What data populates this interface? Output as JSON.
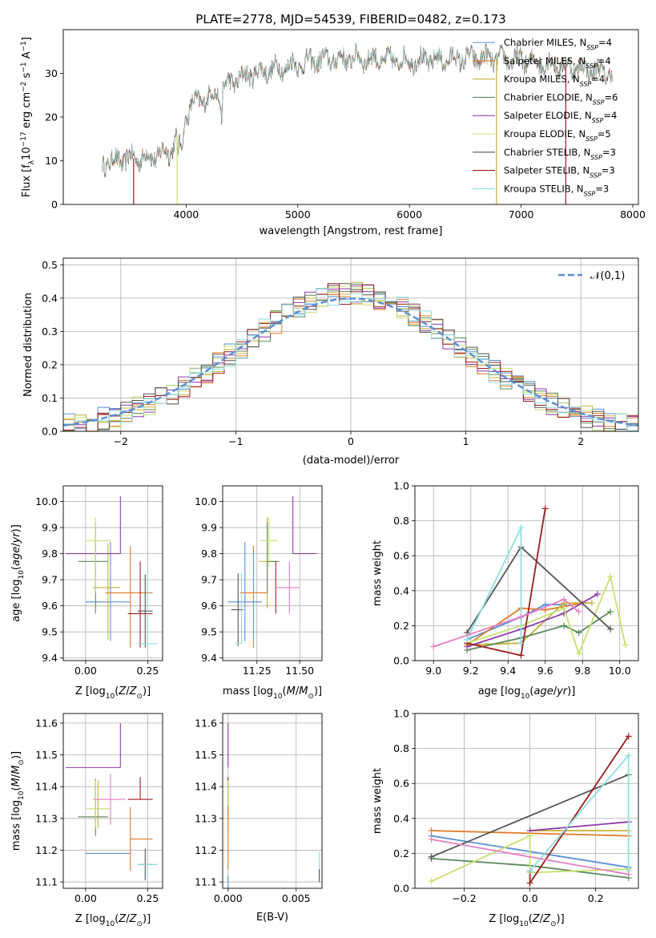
{
  "figure": {
    "title": "PLATE=2778, MJD=54539, FIBERID=0482, z=0.173"
  },
  "palette": {
    "fits": [
      "#5a8fd6",
      "#e07b28",
      "#c8b13a",
      "#5b8a5b",
      "#8e3aa8",
      "#c8e070",
      "#555555",
      "#a01c1c",
      "#8fdfe0"
    ],
    "extra_pink": "#e67fc4",
    "normal": "#5b8fd9"
  },
  "chart_data": [
    {
      "id": "spectrum",
      "type": "line",
      "xlabel": "wavelength [Angstrom, rest frame]",
      "ylabel": "Flux [f_λ10^-17 erg cm^-2 s^-1 A^-1]",
      "xlim": [
        2900,
        8050
      ],
      "ylim": [
        0,
        40
      ],
      "xticks": [
        "4000",
        "5000",
        "6000",
        "7000",
        "8000"
      ],
      "yticks": [
        "0",
        "10",
        "20",
        "30"
      ],
      "legend_location": "upper right",
      "series": [
        {
          "name": "Chabrier MILES, N_SSP=4"
        },
        {
          "name": "Salpeter MILES, N_SSP=4"
        },
        {
          "name": "Kroupa MILES, N_SSP=4"
        },
        {
          "name": "Chabrier ELODIE, N_SSP=6"
        },
        {
          "name": "Salpeter ELODIE, N_SSP=4"
        },
        {
          "name": "Kroupa ELODIE, N_SSP=5"
        },
        {
          "name": "Chabrier STELIB, N_SSP=3"
        },
        {
          "name": "Salpeter STELIB, N_SSP=3"
        },
        {
          "name": "Kroupa STELIB, N_SSP=3"
        }
      ],
      "continuum": [
        [
          3250,
          9.5
        ],
        [
          3500,
          10.5
        ],
        [
          3700,
          11
        ],
        [
          3850,
          12
        ],
        [
          3950,
          17
        ],
        [
          4050,
          23
        ],
        [
          4250,
          25
        ],
        [
          4400,
          28
        ],
        [
          4600,
          30
        ],
        [
          4800,
          31
        ],
        [
          5000,
          32
        ],
        [
          5200,
          33
        ],
        [
          5500,
          33.5
        ],
        [
          5800,
          33
        ],
        [
          6200,
          33
        ],
        [
          6600,
          33.5
        ],
        [
          7000,
          33
        ],
        [
          7300,
          32
        ],
        [
          7600,
          31
        ],
        [
          7820,
          30
        ]
      ],
      "dips": [
        {
          "x": 3530,
          "series_index": 7
        },
        {
          "x": 3920,
          "series_index": 5
        },
        {
          "x": 6780,
          "series_index": 2
        },
        {
          "x": 7400,
          "series_index": 7
        }
      ]
    },
    {
      "id": "residuals",
      "type": "step-histogram",
      "xlabel": "(data-model)/error",
      "ylabel": "Normed distribution",
      "xlim": [
        -2.5,
        2.5
      ],
      "ylim": [
        0,
        0.52
      ],
      "xticks": [
        "−2",
        "−1",
        "0",
        "1",
        "2"
      ],
      "yticks": [
        "0.0",
        "0.1",
        "0.2",
        "0.3",
        "0.4",
        "0.5"
      ],
      "bin_width": 0.1,
      "legend": "𝒩(0,1)",
      "reference_curve": "N(0,1) density"
    },
    {
      "id": "age-vs-Z",
      "type": "errorbar",
      "xlabel": "Z [log10(Z/Z⊙)]",
      "ylabel": "age  [log10(age/yr)]",
      "xlim": [
        -0.09,
        0.31
      ],
      "ylim": [
        9.39,
        10.06
      ],
      "xticks": [
        "0.00",
        "0.25"
      ],
      "yticks": [
        "9.4",
        "9.5",
        "9.6",
        "9.7",
        "9.8",
        "9.9",
        "10.0"
      ],
      "points": [
        {
          "x": 0.1,
          "xerr": [
            0.1,
            0.08
          ],
          "y": 9.615,
          "yerr": [
            0.15,
            0.23
          ],
          "color_index": 0
        },
        {
          "x": 0.18,
          "xerr": [
            0.1,
            0.09
          ],
          "y": 9.65,
          "yerr": [
            0.21,
            0.18
          ],
          "color_index": 1
        },
        {
          "x": 0.09,
          "xerr": [
            0.06,
            0.05
          ],
          "y": 9.67,
          "yerr": [
            0.2,
            0.17
          ],
          "color_index": 2
        },
        {
          "x": 0.04,
          "xerr": [
            0.07,
            0.05
          ],
          "y": 9.77,
          "yerr": [
            0.2,
            0.15
          ],
          "color_index": 3
        },
        {
          "x": 0.14,
          "xerr": [
            0.22,
            0.0
          ],
          "y": 9.8,
          "yerr": [
            0.0,
            0.22
          ],
          "color_index": 4
        },
        {
          "x": 0.04,
          "xerr": [
            0.04,
            0.06
          ],
          "y": 9.85,
          "yerr": [
            0.2,
            0.09
          ],
          "color_index": 5
        },
        {
          "x": 0.24,
          "xerr": [
            0.03,
            0.03
          ],
          "y": 9.58,
          "yerr": [
            0.14,
            0.14
          ],
          "color_index": 6
        },
        {
          "x": 0.22,
          "xerr": [
            0.05,
            0.05
          ],
          "y": 9.57,
          "yerr": [
            0.13,
            0.2
          ],
          "color_index": 7
        },
        {
          "x": 0.25,
          "xerr": [
            0.04,
            0.04
          ],
          "y": 9.455,
          "yerr": [
            0.0,
            0.27
          ],
          "color_index": 8
        }
      ]
    },
    {
      "id": "age-vs-mass",
      "type": "errorbar",
      "xlabel": "mass [log10(M/M⊙)]",
      "ylabel": "",
      "xlim": [
        11.05,
        11.63
      ],
      "ylim": [
        9.39,
        10.06
      ],
      "xticks": [
        "11.25",
        "11.50"
      ],
      "yticks": [
        "9.4",
        "9.5",
        "9.6",
        "9.7",
        "9.8",
        "9.9",
        "10.0"
      ],
      "points": [
        {
          "x": 11.18,
          "xerr": [
            0.1,
            0.1
          ],
          "y": 9.615,
          "yerr": [
            0.15,
            0.23
          ],
          "color_index": 0
        },
        {
          "x": 11.23,
          "xerr": [
            0.08,
            0.08
          ],
          "y": 9.65,
          "yerr": [
            0.21,
            0.18
          ],
          "color_index": 1
        },
        {
          "x": 11.31,
          "xerr": [
            0.05,
            0.05
          ],
          "y": 9.77,
          "yerr": [
            0.18,
            0.17
          ],
          "color_index": 2
        },
        {
          "x": 11.31,
          "xerr": [
            0.0,
            0.07
          ],
          "y": 9.77,
          "yerr": [
            0.12,
            0.15
          ],
          "color_index": 3
        },
        {
          "x": 11.46,
          "xerr": [
            0.0,
            0.14
          ],
          "y": 9.8,
          "yerr": [
            0.0,
            0.22
          ],
          "color_index": 4
        },
        {
          "x": 11.32,
          "xerr": [
            0.05,
            0.05
          ],
          "y": 9.85,
          "yerr": [
            0.1,
            0.09
          ],
          "color_index": 5
        },
        {
          "x": 11.14,
          "xerr": [
            0.04,
            0.03
          ],
          "y": 9.585,
          "yerr": [
            0.14,
            0.14
          ],
          "color_index": 6
        },
        {
          "x": 11.36,
          "xerr": [
            0.0,
            0.0
          ],
          "y": 9.57,
          "yerr": [
            0.0,
            0.2
          ],
          "color_index": 7
        },
        {
          "x": 11.16,
          "xerr": [
            0.04,
            0.0
          ],
          "y": 9.455,
          "yerr": [
            0.0,
            0.27
          ],
          "color_index": 8
        },
        {
          "x": 11.44,
          "xerr": [
            0.08,
            0.06
          ],
          "y": 9.67,
          "yerr": [
            0.1,
            0.1
          ],
          "color_index": "pink"
        }
      ]
    },
    {
      "id": "weight-vs-age",
      "type": "line",
      "xlabel": "age  [log10(age/yr)]",
      "ylabel": "mass weight",
      "xlim": [
        8.9,
        10.1
      ],
      "ylim": [
        0,
        1
      ],
      "xticks": [
        "9.0",
        "9.2",
        "9.4",
        "9.6",
        "9.8",
        "10.0"
      ],
      "yticks": [
        "0.0",
        "0.2",
        "0.4",
        "0.6",
        "0.8",
        "1.0"
      ],
      "series": [
        {
          "color_index": 0,
          "x": [
            9.18,
            9.47,
            9.6,
            9.7
          ],
          "y": [
            0.12,
            0.25,
            0.32,
            0.32
          ]
        },
        {
          "color_index": 1,
          "x": [
            9.18,
            9.47,
            9.6,
            9.8
          ],
          "y": [
            0.09,
            0.3,
            0.29,
            0.33
          ]
        },
        {
          "color_index": 2,
          "x": [
            9.18,
            9.47,
            9.7,
            9.85
          ],
          "y": [
            0.09,
            0.1,
            0.33,
            0.33
          ]
        },
        {
          "color_index": 3,
          "x": [
            9.18,
            9.47,
            9.7,
            9.78,
            9.95
          ],
          "y": [
            0.06,
            0.13,
            0.2,
            0.16,
            0.28
          ]
        },
        {
          "color_index": 4,
          "x": [
            9.18,
            9.47,
            9.7,
            9.88
          ],
          "y": [
            0.08,
            0.18,
            0.27,
            0.38
          ]
        },
        {
          "color_index": 5,
          "x": [
            9.18,
            9.47,
            9.7,
            9.78,
            9.95,
            10.03
          ],
          "y": [
            0.1,
            0.2,
            0.3,
            0.04,
            0.48,
            0.09
          ]
        },
        {
          "color_index": 6,
          "x": [
            9.18,
            9.47,
            9.95
          ],
          "y": [
            0.16,
            0.65,
            0.18
          ]
        },
        {
          "color_index": 7,
          "x": [
            9.18,
            9.47,
            9.6
          ],
          "y": [
            0.1,
            0.03,
            0.87
          ]
        },
        {
          "color_index": 8,
          "x": [
            9.18,
            9.47,
            9.47
          ],
          "y": [
            0.12,
            0.76,
            0.1
          ]
        },
        {
          "color_index": "pink",
          "x": [
            9.0,
            9.47,
            9.7,
            9.78
          ],
          "y": [
            0.08,
            0.25,
            0.35,
            0.28
          ]
        }
      ]
    },
    {
      "id": "mass-vs-Z",
      "type": "errorbar",
      "xlabel": "Z [log10(Z/Z⊙)]",
      "ylabel": "mass [log10(M/M⊙)]",
      "xlim": [
        -0.09,
        0.31
      ],
      "ylim": [
        11.08,
        11.63
      ],
      "xticks": [
        "0.00",
        "0.25"
      ],
      "yticks": [
        "11.1",
        "11.2",
        "11.3",
        "11.4",
        "11.5",
        "11.6"
      ],
      "points": [
        {
          "x": 0.1,
          "xerr": [
            0.1,
            0.08
          ],
          "y": 11.19,
          "yerr": [
            0.0,
            0.0
          ],
          "color_index": 0
        },
        {
          "x": 0.18,
          "xerr": [
            0.0,
            0.09
          ],
          "y": 11.235,
          "yerr": [
            0.1,
            0.1
          ],
          "color_index": 1
        },
        {
          "x": 0.05,
          "xerr": [
            0.05,
            0.04
          ],
          "y": 11.33,
          "yerr": [
            0.06,
            0.09
          ],
          "color_index": 2
        },
        {
          "x": 0.04,
          "xerr": [
            0.07,
            0.05
          ],
          "y": 11.305,
          "yerr": [
            0.06,
            0.12
          ],
          "color_index": 3
        },
        {
          "x": 0.14,
          "xerr": [
            0.22,
            0.0
          ],
          "y": 11.46,
          "yerr": [
            0.0,
            0.14
          ],
          "color_index": 4
        },
        {
          "x": 0.04,
          "xerr": [
            0.04,
            0.06
          ],
          "y": 11.33,
          "yerr": [
            0.06,
            0.09
          ],
          "color_index": 5
        },
        {
          "x": 0.24,
          "xerr": [
            0.03,
            0.03
          ],
          "y": 11.155,
          "yerr": [
            0.05,
            0.05
          ],
          "color_index": 6
        },
        {
          "x": 0.22,
          "xerr": [
            0.05,
            0.05
          ],
          "y": 11.36,
          "yerr": [
            0.0,
            0.07
          ],
          "color_index": 7
        },
        {
          "x": 0.25,
          "xerr": [
            0.04,
            0.04
          ],
          "y": 11.155,
          "yerr": [
            0.04,
            0.0
          ],
          "color_index": 8
        },
        {
          "x": 0.1,
          "xerr": [
            0.07,
            0.06
          ],
          "y": 11.36,
          "yerr": [
            0.08,
            0.08
          ],
          "color_index": "pink"
        }
      ]
    },
    {
      "id": "mass-vs-EBV",
      "type": "errorbar",
      "xlabel": "E(B-V)",
      "ylabel": "",
      "xlim": [
        -0.0004,
        0.0069
      ],
      "ylim": [
        11.08,
        11.63
      ],
      "xticks": [
        "0.000",
        "0.005"
      ],
      "yticks": [
        "11.1",
        "11.2",
        "11.3",
        "11.4",
        "11.5",
        "11.6"
      ],
      "points": [
        {
          "x": 0.0,
          "y": 11.46,
          "yerr": [
            0.0,
            0.14
          ],
          "color_index": 4
        },
        {
          "x": 0.0,
          "y": 11.35,
          "yerr": [
            0.05,
            0.08
          ],
          "color_index": 7
        },
        {
          "x": 0.0,
          "y": 11.33,
          "yerr": [
            0.06,
            0.09
          ],
          "color_index": 5
        },
        {
          "x": 0.0,
          "y": 11.24,
          "yerr": [
            0.1,
            0.1
          ],
          "color_index": 1
        },
        {
          "x": 0.0,
          "y": 11.1,
          "yerr": [
            0.02,
            0.02
          ],
          "color_index": 0
        },
        {
          "x": 0.0067,
          "y": 11.155,
          "yerr": [
            0.04,
            0.04
          ],
          "color_index": 8
        },
        {
          "x": 0.0067,
          "y": 11.12,
          "yerr": [
            0.02,
            0.02
          ],
          "color_index": 6
        }
      ]
    },
    {
      "id": "weight-vs-Z",
      "type": "line",
      "xlabel": "Z [log10(Z/Z⊙)]",
      "ylabel": "mass weight",
      "xlim": [
        -0.35,
        0.33
      ],
      "ylim": [
        0,
        1
      ],
      "xticks": [
        "−0.2",
        "0.0",
        "0.2"
      ],
      "yticks": [
        "0.0",
        "0.2",
        "0.4",
        "0.6",
        "0.8",
        "1.0"
      ],
      "series": [
        {
          "color_index": 0,
          "x": [
            -0.3,
            0.3
          ],
          "y": [
            0.3,
            0.12
          ]
        },
        {
          "color_index": 1,
          "x": [
            -0.3,
            0.3
          ],
          "y": [
            0.33,
            0.3
          ]
        },
        {
          "color_index": 2,
          "x": [
            0.0,
            0.3
          ],
          "y": [
            0.33,
            0.33
          ]
        },
        {
          "color_index": 3,
          "x": [
            -0.3,
            0.0,
            0.3
          ],
          "y": [
            0.17,
            0.13,
            0.06
          ]
        },
        {
          "color_index": 4,
          "x": [
            0.0,
            0.3
          ],
          "y": [
            0.33,
            0.38
          ]
        },
        {
          "color_index": 5,
          "x": [
            -0.3,
            0.0,
            0.0,
            0.3
          ],
          "y": [
            0.04,
            0.3,
            0.09,
            0.11
          ]
        },
        {
          "color_index": 6,
          "x": [
            -0.3,
            0.3
          ],
          "y": [
            0.18,
            0.65
          ]
        },
        {
          "color_index": 7,
          "x": [
            0.0,
            0.0,
            0.3
          ],
          "y": [
            0.1,
            0.03,
            0.87
          ]
        },
        {
          "color_index": 8,
          "x": [
            0.0,
            0.3,
            0.3
          ],
          "y": [
            0.1,
            0.76,
            0.1
          ]
        },
        {
          "color_index": "pink",
          "x": [
            -0.3,
            0.3
          ],
          "y": [
            0.28,
            0.08
          ]
        }
      ]
    }
  ]
}
